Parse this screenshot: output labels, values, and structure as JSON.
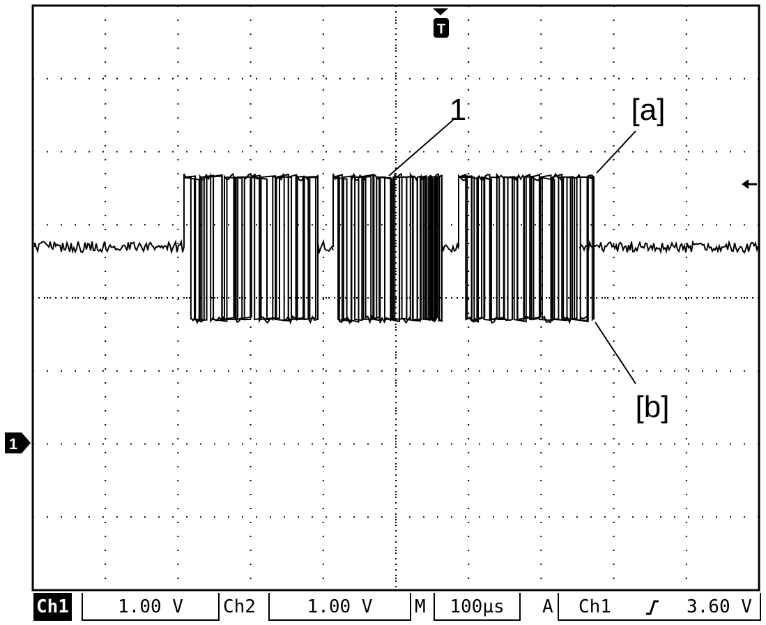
{
  "trigger_marker": "T",
  "channel_marker": "1",
  "annotations": {
    "ref1": "1",
    "ref_a": "[a]",
    "ref_b": "[b]"
  },
  "status_bar": {
    "ch1_label": "Ch1",
    "ch1_scale": "1.00 V",
    "ch2_label": "Ch2",
    "ch2_scale": "1.00 V",
    "timebase_label": "M",
    "timebase_value": "100µs",
    "trigger_mode": "A",
    "trigger_source": "Ch1",
    "trigger_slope": "rising-edge-icon",
    "trigger_level": "3.60 V"
  },
  "colors": {
    "trace": "#000000",
    "grid": "#000000",
    "background": "#ffffff"
  }
}
